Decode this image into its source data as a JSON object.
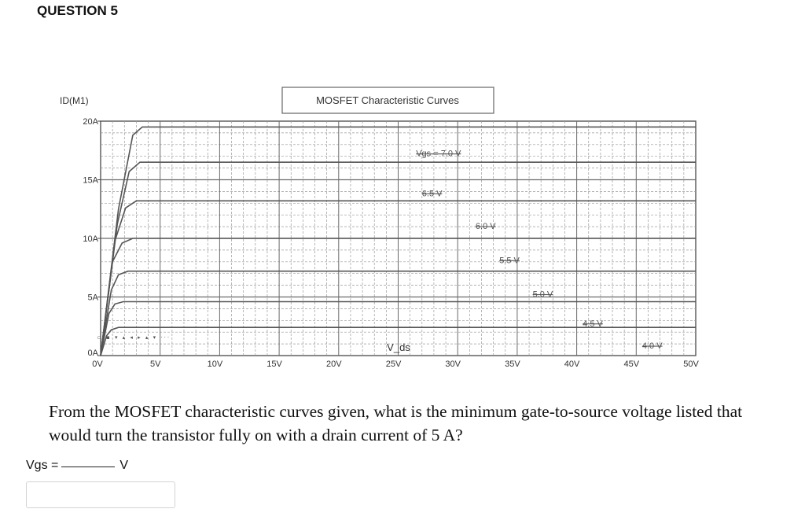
{
  "question": {
    "header": "QUESTION 5",
    "text": "From the MOSFET characteristic curves given, what is the minimum gate-to-source voltage listed that would turn the transistor fully on with a drain current of 5 A?",
    "answer_prefix_main": "V",
    "answer_prefix_sub": "gs",
    "answer_equals": " =",
    "answer_unit": "V",
    "answer_value": ""
  },
  "chart_data": {
    "type": "line",
    "title": "MOSFET Characteristic Curves",
    "ylabel": "ID(M1)",
    "xlabel": "V_ds",
    "xlim": [
      0,
      50
    ],
    "ylim": [
      0,
      20
    ],
    "x_ticks": [
      "0V",
      "5V",
      "10V",
      "15V",
      "20V",
      "25V",
      "30V",
      "35V",
      "40V",
      "45V",
      "50V"
    ],
    "y_ticks": [
      "0A",
      "5A",
      "10A",
      "15A",
      "20A"
    ],
    "grid": true,
    "legend_marks": "▫ ▪ ▾ ▴ ◂ ▸ ▴ ▾ ···",
    "series": [
      {
        "name": "Vgs = 7.0 V",
        "label_text": "Vgs = 7.0 V",
        "label_x": 26.5,
        "label_y": 17.0,
        "color": "#555555",
        "x": [
          0,
          1.5,
          2.7,
          3.5,
          50
        ],
        "y": [
          0,
          12.5,
          18.8,
          19.5,
          19.5
        ]
      },
      {
        "name": "6.5 V",
        "label_text": "6.5 V",
        "label_x": 27.0,
        "label_y": 13.6,
        "color": "#555555",
        "x": [
          0,
          1.4,
          2.4,
          3.3,
          50
        ],
        "y": [
          0,
          11.2,
          15.7,
          16.5,
          16.5
        ]
      },
      {
        "name": "6.0 V",
        "label_text": "6.0 V",
        "label_x": 31.5,
        "label_y": 10.8,
        "color": "#555555",
        "x": [
          0,
          1.2,
          2.1,
          3.0,
          50
        ],
        "y": [
          0,
          9.8,
          12.6,
          13.2,
          13.2
        ]
      },
      {
        "name": "5.5 V",
        "label_text": "5.5 V",
        "label_x": 33.5,
        "label_y": 7.9,
        "color": "#555555",
        "x": [
          0,
          1.0,
          1.8,
          2.7,
          50
        ],
        "y": [
          0,
          8.0,
          9.6,
          10.0,
          10.0
        ]
      },
      {
        "name": "5.0 V",
        "label_text": "5.0 V",
        "label_x": 36.3,
        "label_y": 5.0,
        "color": "#555555",
        "x": [
          0,
          0.9,
          1.5,
          2.3,
          50
        ],
        "y": [
          0,
          5.6,
          6.9,
          7.2,
          7.2
        ]
      },
      {
        "name": "4.5 V",
        "label_text": "4.5 V",
        "label_x": 40.5,
        "label_y": 2.5,
        "color": "#555555",
        "x": [
          0,
          0.7,
          1.2,
          1.9,
          50
        ],
        "y": [
          0,
          3.6,
          4.4,
          4.6,
          4.6
        ]
      },
      {
        "name": "4.0 V",
        "label_text": "4.0 V",
        "label_x": 45.5,
        "label_y": 0.6,
        "color": "#555555",
        "x": [
          0,
          0.5,
          0.9,
          1.5,
          50
        ],
        "y": [
          0,
          1.7,
          2.2,
          2.4,
          2.4
        ]
      }
    ]
  }
}
